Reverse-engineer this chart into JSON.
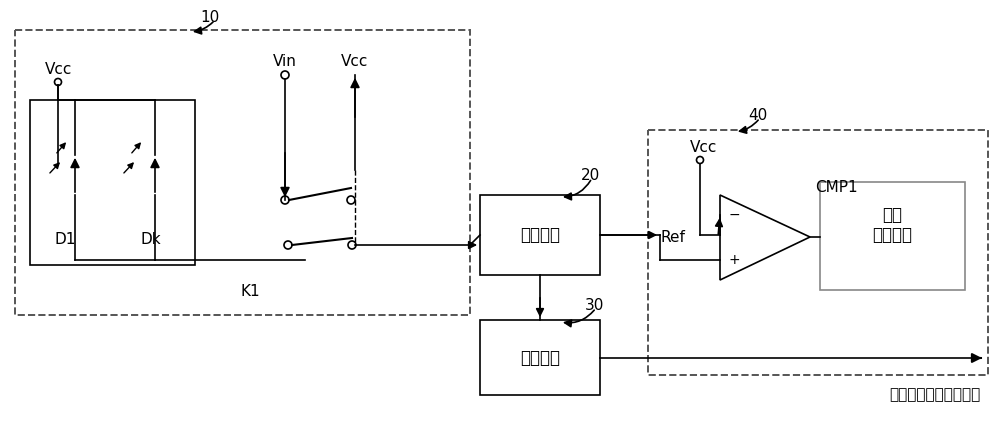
{
  "bg_color": "#ffffff",
  "line_color": "#000000",
  "box10_label": "10",
  "box40_label": "40",
  "box20_label": "20",
  "box20_text": "积分电路",
  "box30_label": "30",
  "box30_text": "驱动电路",
  "alarm_box_text": "声光\n报警电路",
  "vcc_label": "Vcc",
  "vin_label": "Vin",
  "ref_label": "Ref",
  "cmp1_label": "CMP1",
  "k1_label": "K1",
  "d1_label": "D1",
  "dk_label": "Dk",
  "bottom_label": "行场扫描之亮度输入端",
  "font_size": 10.5,
  "chinese_font": "SimHei"
}
